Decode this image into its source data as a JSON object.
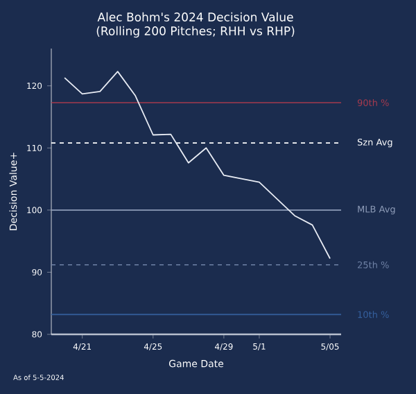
{
  "chart_data": {
    "type": "line",
    "title": "Alec Bohm's 2024 Decision Value",
    "subtitle": "(Rolling 200 Pitches; RHH vs RHP)",
    "xlabel": "Game Date",
    "ylabel": "Decision Value+",
    "x": [
      "2024-04-20",
      "2024-04-21",
      "2024-04-22",
      "2024-04-23",
      "2024-04-24",
      "2024-04-25",
      "2024-04-26",
      "2024-04-27",
      "2024-04-28",
      "2024-04-29",
      "2024-05-01",
      "2024-05-03",
      "2024-05-04",
      "2024-05-05"
    ],
    "series": [
      {
        "color": "#e8ecf4",
        "values": [
          121.3,
          118.7,
          119.1,
          122.3,
          118.4,
          112.1,
          112.2,
          107.6,
          110.0,
          105.6,
          104.5,
          99.1,
          97.6,
          92.2
        ]
      }
    ],
    "xlim": [
      "2024-04-19T06:00",
      "2024-05-05T15:00"
    ],
    "ylim": [
      80,
      126
    ],
    "xticks": [
      {
        "value": "2024-04-21",
        "label": "4/21"
      },
      {
        "value": "2024-04-25",
        "label": "4/25"
      },
      {
        "value": "2024-04-29",
        "label": "4/29"
      },
      {
        "value": "2024-05-01",
        "label": "5/1"
      },
      {
        "value": "2024-05-05",
        "label": "5/05"
      }
    ],
    "yticks": [
      80,
      90,
      100,
      110,
      120
    ],
    "ref_lines": [
      {
        "axis": "y",
        "value": 117.3,
        "label": "90th %",
        "color": "#a63a4e",
        "line_style": "solid"
      },
      {
        "axis": "y",
        "value": 110.8,
        "label": "Szn Avg",
        "color": "#ffffff",
        "line_style": "dashed"
      },
      {
        "axis": "y",
        "value": 100,
        "label": "MLB Avg",
        "color": "#8e9cb8",
        "line_style": "solid"
      },
      {
        "axis": "y",
        "value": 91.2,
        "label": "25th %",
        "color": "#6f82a6",
        "line_style": "dashed"
      },
      {
        "axis": "y",
        "value": 83.2,
        "label": "10th %",
        "color": "#35609e",
        "line_style": "solid"
      }
    ],
    "annotations": [
      "As of 5-5-2024"
    ],
    "grid": false,
    "marker": "none",
    "line_style": "solid"
  }
}
